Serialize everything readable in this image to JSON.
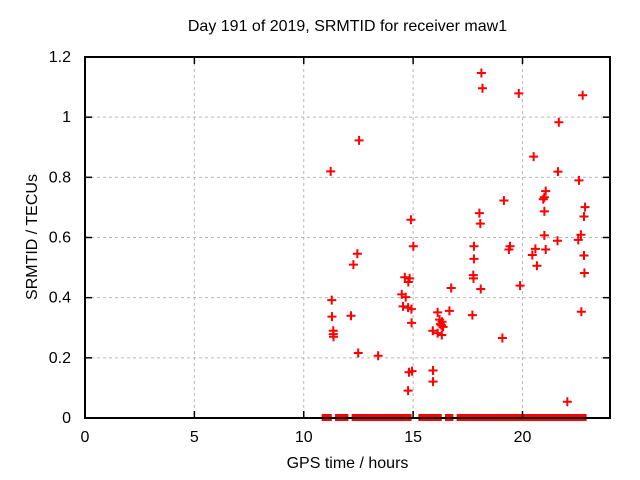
{
  "chart_data": {
    "type": "scatter",
    "title": "Day 191 of 2019, SRMTID for receiver maw1",
    "xlabel": "GPS time / hours",
    "ylabel": "SRMTID / TECUs",
    "xlim": [
      0,
      24
    ],
    "ylim": [
      0,
      1.2
    ],
    "x_ticks": [
      0,
      5,
      10,
      15,
      20
    ],
    "x_tick_labels": [
      "0",
      "5",
      "10",
      "15",
      "20"
    ],
    "y_ticks": [
      0,
      0.2,
      0.4,
      0.6,
      0.8,
      1,
      1.2
    ],
    "y_tick_labels": [
      "0",
      "0.2",
      "0.4",
      "0.6",
      "0.8",
      "1",
      "1.2"
    ],
    "grid": true,
    "legend": "none",
    "marker": "plus",
    "marker_color": "#ff0000",
    "grid_color": "#b8b8b8",
    "border_color": "#000000",
    "background_color": "#ffffff",
    "points": [
      [
        11.23,
        0.82
      ],
      [
        11.28,
        0.392
      ],
      [
        11.29,
        0.337
      ],
      [
        11.35,
        0.29
      ],
      [
        11.35,
        0.279
      ],
      [
        11.36,
        0.27
      ],
      [
        12.16,
        0.34
      ],
      [
        12.27,
        0.51
      ],
      [
        12.45,
        0.546
      ],
      [
        12.49,
        0.216
      ],
      [
        12.53,
        0.923
      ],
      [
        13.4,
        0.207
      ],
      [
        14.48,
        0.411
      ],
      [
        14.54,
        0.371
      ],
      [
        14.62,
        0.468
      ],
      [
        14.66,
        0.402
      ],
      [
        14.77,
        0.367
      ],
      [
        14.77,
        0.091
      ],
      [
        14.78,
        0.452
      ],
      [
        14.81,
        0.152
      ],
      [
        14.84,
        0.464
      ],
      [
        14.9,
        0.659
      ],
      [
        14.92,
        0.362
      ],
      [
        14.93,
        0.316
      ],
      [
        14.95,
        0.156
      ],
      [
        15.01,
        0.571
      ],
      [
        15.9,
        0.29
      ],
      [
        15.91,
        0.158
      ],
      [
        15.91,
        0.121
      ],
      [
        16.12,
        0.351
      ],
      [
        16.12,
        0.282
      ],
      [
        16.21,
        0.327
      ],
      [
        16.25,
        0.312
      ],
      [
        16.3,
        0.308
      ],
      [
        16.31,
        0.276
      ],
      [
        16.32,
        0.32
      ],
      [
        16.37,
        0.303
      ],
      [
        16.66,
        0.356
      ],
      [
        16.74,
        0.432
      ],
      [
        17.71,
        0.342
      ],
      [
        17.75,
        0.475
      ],
      [
        17.76,
        0.464
      ],
      [
        17.78,
        0.571
      ],
      [
        17.78,
        0.529
      ],
      [
        18.03,
        0.681
      ],
      [
        18.07,
        0.646
      ],
      [
        18.09,
        0.429
      ],
      [
        18.12,
        1.147
      ],
      [
        18.17,
        1.096
      ],
      [
        19.08,
        0.266
      ],
      [
        19.15,
        0.723
      ],
      [
        19.38,
        0.56
      ],
      [
        19.43,
        0.571
      ],
      [
        19.83,
        1.079
      ],
      [
        19.89,
        0.44
      ],
      [
        20.45,
        0.542
      ],
      [
        20.51,
        0.869
      ],
      [
        20.59,
        0.562
      ],
      [
        20.66,
        0.506
      ],
      [
        20.95,
        0.727
      ],
      [
        21.0,
        0.734
      ],
      [
        21.0,
        0.687
      ],
      [
        21.0,
        0.607
      ],
      [
        21.06,
        0.754
      ],
      [
        21.06,
        0.56
      ],
      [
        21.6,
        0.589
      ],
      [
        21.62,
        0.819
      ],
      [
        21.66,
        0.983
      ],
      [
        22.05,
        0.054
      ],
      [
        22.55,
        0.592
      ],
      [
        22.58,
        0.79
      ],
      [
        22.67,
        0.609
      ],
      [
        22.69,
        0.353
      ],
      [
        22.75,
        1.073
      ],
      [
        22.81,
        0.67
      ],
      [
        22.81,
        0.54
      ],
      [
        22.83,
        0.482
      ],
      [
        22.86,
        0.701
      ]
    ],
    "zero_band_segments": [
      [
        10.82,
        11.28
      ],
      [
        11.43,
        12.04
      ],
      [
        12.19,
        14.93
      ],
      [
        15.24,
        16.31
      ],
      [
        16.46,
        16.84
      ],
      [
        16.99,
        22.93
      ]
    ]
  }
}
